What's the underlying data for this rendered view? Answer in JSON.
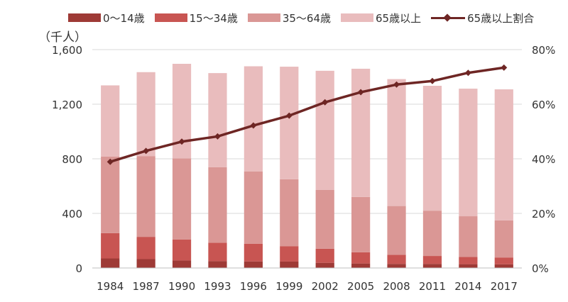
{
  "chart_data": {
    "type": "bar",
    "stacked": true,
    "unit_label": "（千人）",
    "categories": [
      "1984",
      "1987",
      "1990",
      "1993",
      "1996",
      "1999",
      "2002",
      "2005",
      "2008",
      "2011",
      "2014",
      "2017"
    ],
    "series": [
      {
        "name": "0～14歳",
        "color": "#9e3a36",
        "values": [
          70,
          65,
          55,
          50,
          48,
          47,
          38,
          33,
          30,
          30,
          28,
          27
        ]
      },
      {
        "name": "15～34歳",
        "color": "#c85552",
        "values": [
          185,
          163,
          153,
          135,
          130,
          113,
          103,
          82,
          67,
          58,
          53,
          50
        ]
      },
      {
        "name": "35～64歳",
        "color": "#da9795",
        "values": [
          562,
          592,
          595,
          553,
          530,
          490,
          432,
          405,
          357,
          332,
          298,
          272
        ]
      },
      {
        "name": "65歳以上",
        "color": "#e9bcbd",
        "values": [
          521,
          615,
          693,
          690,
          770,
          825,
          872,
          940,
          930,
          915,
          935,
          960
        ]
      }
    ],
    "line_series": {
      "name": "65歳以上割合",
      "color": "#6e2624",
      "values": [
        38.9,
        42.9,
        46.3,
        48.2,
        52.2,
        55.8,
        60.7,
        64.4,
        67.2,
        68.5,
        71.5,
        73.4
      ]
    },
    "y_left": {
      "min": 0,
      "max": 1600,
      "ticks": [
        0,
        400,
        800,
        1200,
        1600
      ],
      "tick_labels": [
        "0",
        "400",
        "800",
        "1,200",
        "1,600"
      ]
    },
    "y_right": {
      "min": 0,
      "max": 80,
      "ticks": [
        0,
        20,
        40,
        60,
        80
      ],
      "tick_labels": [
        "0%",
        "20%",
        "40%",
        "60%",
        "80%"
      ]
    },
    "grid": true,
    "legend_position": "top"
  }
}
